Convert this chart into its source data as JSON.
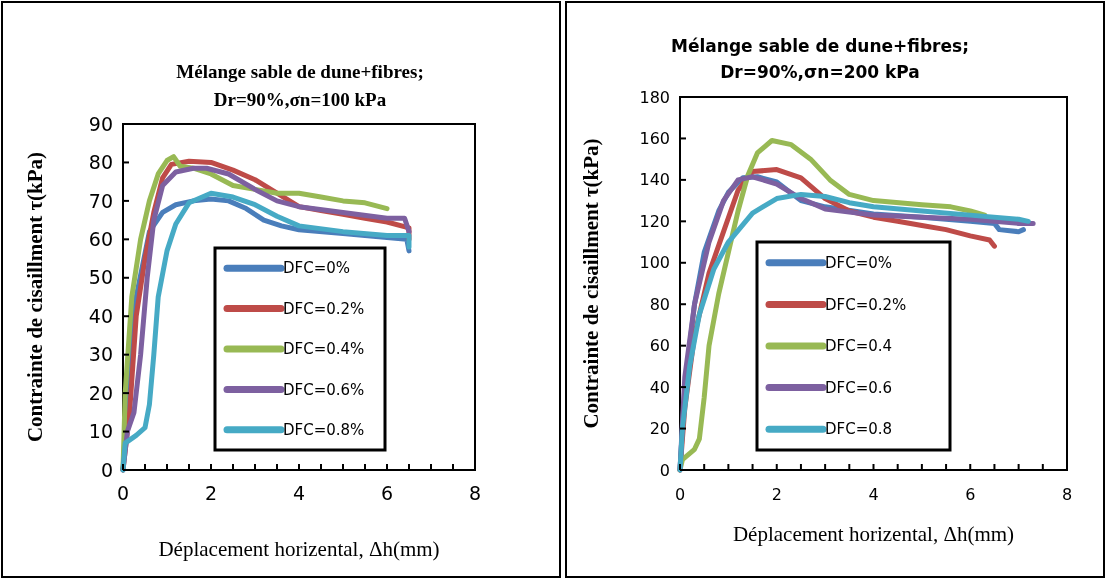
{
  "chart_data": [
    {
      "type": "line",
      "title": "Mélange sable de dune+fibres;\nDr=90%,σn=100 kPa",
      "xlabel": "Déplacement horizental, Δh(mm)",
      "ylabel": "Contrainte de cisaillment τ(kPa)",
      "xlim": [
        0,
        8
      ],
      "ylim": [
        0,
        90
      ],
      "xticks": [
        0,
        {
          "value": 0.5,
          "label": null
        },
        {
          "value": 1,
          "label": null
        },
        {
          "value": 1.5,
          "label": null
        },
        2,
        {
          "value": 2.5,
          "label": null
        },
        {
          "value": 3,
          "label": null
        },
        {
          "value": 3.5,
          "label": null
        },
        4,
        {
          "value": 4.5,
          "label": null
        },
        {
          "value": 5,
          "label": null
        },
        {
          "value": 5.5,
          "label": null
        },
        6,
        {
          "value": 6.5,
          "label": null
        },
        {
          "value": 7,
          "label": null
        },
        {
          "value": 7.5,
          "label": null
        },
        8
      ],
      "yticks": [
        0,
        10,
        20,
        30,
        40,
        50,
        60,
        70,
        80,
        90
      ],
      "grid": false,
      "legend": "bottom right",
      "line_style": "solid",
      "marker": "none",
      "series": [
        {
          "name": "DFC=0%",
          "color": "#4a7ebb",
          "x": [
            0,
            0.1,
            0.3,
            0.6,
            0.9,
            1.2,
            1.6,
            2,
            2.4,
            2.8,
            3.2,
            3.6,
            4,
            5,
            6,
            6.45,
            6.5
          ],
          "values": [
            0,
            20,
            45,
            62,
            67,
            69,
            70,
            70.5,
            70,
            68,
            65,
            63.5,
            62.5,
            61.5,
            60.5,
            60,
            57
          ]
        },
        {
          "name": "DFC=0.2%",
          "color": "#be4b48",
          "x": [
            0,
            0.15,
            0.3,
            0.5,
            0.7,
            0.9,
            1.1,
            1.5,
            2,
            2.5,
            3,
            3.5,
            4,
            4.5,
            5,
            5.5,
            6,
            6.5,
            6.5
          ],
          "values": [
            0,
            15,
            40,
            55,
            67,
            76,
            79.5,
            80.3,
            80,
            78,
            75.5,
            72,
            68.5,
            67.5,
            66.5,
            65.5,
            64.5,
            63,
            60
          ]
        },
        {
          "name": "DFC=0.4%",
          "color": "#98b954",
          "x": [
            0,
            0.05,
            0.2,
            0.4,
            0.6,
            0.8,
            1,
            1.15,
            1.3,
            1.6,
            2,
            2.5,
            3,
            3.5,
            4,
            4.5,
            5,
            5.5,
            6
          ],
          "values": [
            0,
            20,
            45,
            60,
            70,
            77,
            80.5,
            81.5,
            79,
            78.5,
            77,
            74,
            73,
            72,
            72,
            71,
            70,
            69.5,
            68
          ]
        },
        {
          "name": "DFC=0.6%",
          "color": "#7d60a0",
          "x": [
            0,
            0.1,
            0.25,
            0.4,
            0.55,
            0.7,
            0.9,
            1.2,
            1.6,
            1.9,
            2.4,
            3,
            3.5,
            4,
            5,
            6,
            6.4,
            6.5
          ],
          "values": [
            0,
            10,
            15,
            30,
            50,
            65,
            74,
            77.5,
            78.5,
            78.5,
            77,
            73,
            70,
            68.5,
            67,
            65.5,
            65.5,
            62
          ]
        },
        {
          "name": "DFC=0.8%",
          "color": "#46aac5",
          "x": [
            0,
            0.05,
            0.3,
            0.5,
            0.6,
            0.7,
            0.8,
            1,
            1.2,
            1.5,
            2,
            2.5,
            3,
            3.5,
            4,
            5,
            6,
            6.5,
            6.5
          ],
          "values": [
            0,
            7,
            9,
            11,
            17,
            30,
            45,
            57,
            64,
            69.5,
            72,
            71,
            69,
            66,
            63.5,
            62,
            61,
            61,
            58
          ]
        }
      ]
    },
    {
      "type": "line",
      "title": "Mélange sable de dune+fibres;\nDr=90%,σn=200 kPa",
      "xlabel": "Déplacement horizental, Δh(mm)",
      "ylabel": "Contrainte de cisaillment τ(kPa)",
      "xlim": [
        0,
        8
      ],
      "ylim": [
        0,
        180
      ],
      "xticks": [
        0,
        {
          "value": 0.5,
          "label": null
        },
        {
          "value": 1,
          "label": null
        },
        {
          "value": 1.5,
          "label": null
        },
        2,
        {
          "value": 2.5,
          "label": null
        },
        {
          "value": 3,
          "label": null
        },
        {
          "value": 3.5,
          "label": null
        },
        4,
        {
          "value": 4.5,
          "label": null
        },
        {
          "value": 5,
          "label": null
        },
        {
          "value": 5.5,
          "label": null
        },
        6,
        {
          "value": 6.5,
          "label": null
        },
        {
          "value": 7,
          "label": null
        },
        {
          "value": 7.5,
          "label": null
        },
        8
      ],
      "yticks": [
        0,
        20,
        40,
        60,
        80,
        100,
        120,
        140,
        160,
        180
      ],
      "grid": false,
      "legend": "bottom",
      "line_style": "solid",
      "marker": "none",
      "series": [
        {
          "name": "DFC=0%",
          "color": "#4a7ebb",
          "x": [
            0,
            0.1,
            0.3,
            0.5,
            0.8,
            1,
            1.3,
            1.6,
            2,
            2.5,
            3,
            4,
            5,
            6,
            6.5,
            6.6,
            7,
            7.1
          ],
          "values": [
            0,
            40,
            80,
            105,
            125,
            134,
            141,
            141.5,
            139,
            130,
            127,
            123.5,
            122,
            120,
            119,
            116,
            115,
            116
          ]
        },
        {
          "name": "DFC=0.2%",
          "color": "#be4b48",
          "x": [
            0,
            0.1,
            0.3,
            0.6,
            0.9,
            1.2,
            1.5,
            2,
            2.5,
            3,
            3.5,
            4,
            4.5,
            5,
            5.5,
            6,
            6.4,
            6.5
          ],
          "values": [
            0,
            30,
            65,
            95,
            115,
            135,
            144,
            145,
            141,
            131,
            125,
            122,
            120,
            118,
            116,
            113,
            111,
            108
          ]
        },
        {
          "name": "DFC=0.4",
          "color": "#98b954",
          "x": [
            0,
            0.05,
            0.3,
            0.4,
            0.5,
            0.6,
            0.8,
            1,
            1.2,
            1.4,
            1.6,
            1.9,
            2.3,
            2.7,
            3.1,
            3.5,
            4,
            5,
            5.6,
            6,
            6.3
          ],
          "values": [
            0,
            5,
            10,
            15,
            35,
            60,
            85,
            105,
            125,
            142,
            153,
            159,
            157,
            150,
            140,
            133,
            130,
            128,
            127,
            125,
            123
          ]
        },
        {
          "name": "DFC=0.6",
          "color": "#7d60a0",
          "x": [
            0,
            0.1,
            0.3,
            0.6,
            0.9,
            1.2,
            1.5,
            2,
            2.5,
            3,
            4,
            5,
            6,
            7,
            7.3
          ],
          "values": [
            0,
            45,
            80,
            110,
            130,
            140,
            141.5,
            138,
            131,
            126,
            123,
            122,
            121,
            119,
            119
          ]
        },
        {
          "name": "DFC=0.8",
          "color": "#46aac5",
          "x": [
            0,
            0.05,
            0.2,
            0.4,
            0.7,
            1,
            1.5,
            2,
            2.5,
            3,
            3.5,
            4,
            5,
            6,
            7,
            7.2
          ],
          "values": [
            0,
            20,
            50,
            75,
            97,
            110,
            124,
            131,
            133,
            132,
            129,
            127,
            125,
            123,
            121,
            120
          ]
        }
      ]
    }
  ]
}
